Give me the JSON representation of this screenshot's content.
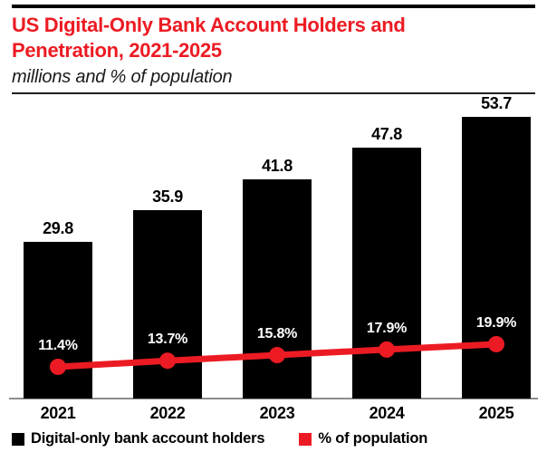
{
  "meta": {
    "colors": {
      "accent_red": "#EC1B23",
      "bar_black": "#000000",
      "axis_gray": "#8d8d8d",
      "background": "#ffffff",
      "pct_label_white": "#ffffff"
    }
  },
  "header": {
    "title_line1": "US Digital-Only Bank Account Holders and",
    "title_line2": "Penetration, 2021-2025",
    "subtitle": "millions and % of population"
  },
  "chart_data": {
    "type": "bar+line combo",
    "title": "US Digital-Only Bank Account Holders and Penetration, 2021-2025",
    "subtitle": "millions and % of population",
    "categories": [
      "2021",
      "2022",
      "2023",
      "2024",
      "2025"
    ],
    "series": [
      {
        "name": "Digital-only bank account holders",
        "type": "bar",
        "unit": "millions",
        "color": "#000000",
        "values": [
          29.8,
          35.9,
          41.8,
          47.8,
          53.7
        ],
        "labels": [
          "29.8",
          "35.9",
          "41.8",
          "47.8",
          "53.7"
        ]
      },
      {
        "name": "% of population",
        "type": "line",
        "unit": "% of population",
        "color": "#EC1B23",
        "values": [
          11.4,
          13.7,
          15.8,
          17.9,
          19.9
        ],
        "labels": [
          "11.4%",
          "13.7%",
          "15.8%",
          "17.9%",
          "19.9%"
        ]
      }
    ],
    "grid": false,
    "value_axis_ticks_visible": false,
    "data_labels_visible": true,
    "legend_position": "bottom"
  },
  "legend": {
    "items": [
      {
        "label": "Digital-only bank account holders",
        "color": "#000000"
      },
      {
        "label": "% of population",
        "color": "#EC1B23"
      }
    ]
  }
}
